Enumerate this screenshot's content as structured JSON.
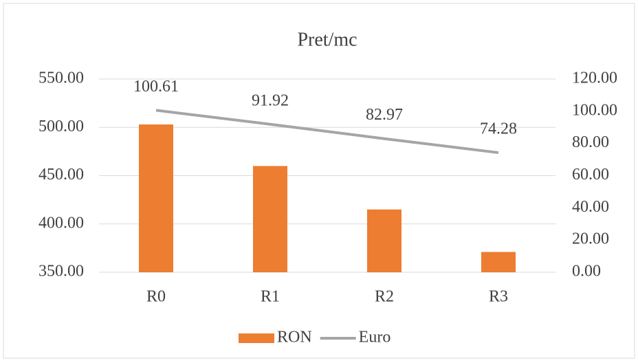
{
  "chart_data": {
    "type": "bar",
    "title": "Pret/mc",
    "categories": [
      "R0",
      "R1",
      "R2",
      "R3"
    ],
    "series": [
      {
        "name": "RON",
        "type": "bar",
        "color": "#ed7d31",
        "values": [
          503,
          460,
          415,
          371
        ]
      },
      {
        "name": "Euro",
        "type": "line",
        "axis": "y2",
        "color": "#a5a5a5",
        "values": [
          100.61,
          91.92,
          82.97,
          74.28
        ]
      }
    ],
    "ylim": [
      350,
      550
    ],
    "yticks": [
      {
        "value": 350,
        "label": "350.00"
      },
      {
        "value": 400,
        "label": "400.00"
      },
      {
        "value": 450,
        "label": "450.00"
      },
      {
        "value": 500,
        "label": "500.00"
      },
      {
        "value": 550,
        "label": "550.00"
      }
    ],
    "y2lim": [
      0,
      120
    ],
    "y2ticks": [
      {
        "value": 0,
        "label": "0.00"
      },
      {
        "value": 20,
        "label": "20.00"
      },
      {
        "value": 40,
        "label": "40.00"
      },
      {
        "value": 60,
        "label": "60.00"
      },
      {
        "value": 80,
        "label": "80.00"
      },
      {
        "value": 100,
        "label": "100.00"
      },
      {
        "value": 120,
        "label": "120.00"
      }
    ],
    "grid": true,
    "legend": "bottom"
  }
}
